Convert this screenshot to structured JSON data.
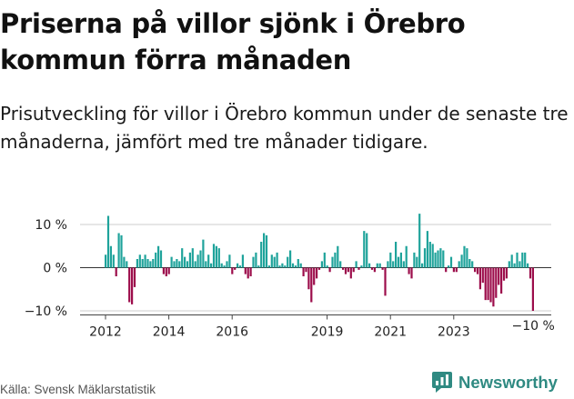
{
  "header": {
    "title": "Priserna på villor sjönk i Örebro kommun förra månaden",
    "subtitle": "Prisutveckling för villor i Örebro kommun under de senaste tre månaderna, jämfört med tre månader tidigare."
  },
  "footer": {
    "source": "Källa: Svensk Mäklarstatistik",
    "brand": "Newsworthy"
  },
  "colors": {
    "positive": "#1fa39b",
    "negative": "#9c0d4b",
    "gridline": "#cccccc",
    "zero_line": "#333333",
    "brand": "#2f8a82"
  },
  "chart_data": {
    "type": "bar",
    "x_unit": "month",
    "x_start": "2012-01",
    "y_unit": "%",
    "ylim": [
      -11,
      13
    ],
    "yticks": [
      10,
      0,
      -10
    ],
    "ytick_labels": [
      "10 %",
      "0 %",
      "−10 %"
    ],
    "xticks": [
      "2012",
      "2014",
      "2016",
      "2019",
      "2021",
      "2023"
    ],
    "grid": true,
    "last_value_label": "−10 %",
    "values": [
      3.0,
      12.0,
      5.0,
      3.0,
      -2.0,
      8.0,
      7.5,
      2.5,
      1.5,
      -8.0,
      -8.5,
      -4.5,
      2.0,
      3.0,
      2.0,
      3.0,
      2.0,
      1.5,
      2.0,
      3.5,
      5.0,
      4.0,
      -1.5,
      -2.0,
      -1.5,
      2.5,
      1.5,
      2.0,
      1.5,
      4.5,
      2.5,
      1.5,
      3.5,
      4.5,
      1.5,
      3.0,
      4.0,
      6.5,
      1.5,
      3.0,
      1.0,
      5.5,
      5.0,
      4.5,
      1.0,
      0.5,
      1.5,
      3.0,
      -1.5,
      -0.5,
      1.0,
      0.5,
      3.0,
      -1.5,
      -2.5,
      -2.0,
      2.5,
      3.5,
      0.5,
      6.0,
      8.0,
      7.5,
      0.5,
      3.0,
      2.5,
      3.5,
      0.5,
      1.0,
      0.5,
      2.5,
      4.0,
      1.0,
      0.5,
      2.0,
      1.0,
      -2.0,
      -1.0,
      -5.0,
      -8.0,
      -4.0,
      -2.5,
      -0.5,
      1.5,
      3.5,
      0.5,
      -1.0,
      2.5,
      3.5,
      5.0,
      1.5,
      -0.5,
      -1.5,
      -1.0,
      -2.5,
      -1.0,
      1.5,
      -0.5,
      0.5,
      8.5,
      8.0,
      1.0,
      -0.5,
      -1.0,
      1.0,
      1.0,
      -0.5,
      -6.5,
      1.5,
      3.5,
      1.5,
      6.0,
      2.5,
      3.5,
      1.5,
      5.0,
      -1.5,
      -2.5,
      3.5,
      2.5,
      12.5,
      1.0,
      4.5,
      8.5,
      6.0,
      5.5,
      3.5,
      4.0,
      4.5,
      4.0,
      -1.0,
      0.5,
      2.5,
      -1.0,
      -1.0,
      1.5,
      3.0,
      5.0,
      4.5,
      2.0,
      1.5,
      -1.0,
      -1.5,
      -5.0,
      -3.5,
      -7.5,
      -7.5,
      -8.0,
      -9.0,
      -7.0,
      -4.0,
      -6.0,
      -3.0,
      -2.5,
      1.5,
      3.0,
      1.0,
      3.5,
      1.5,
      3.5,
      3.5,
      1.0,
      -2.5,
      -10.0
    ]
  }
}
